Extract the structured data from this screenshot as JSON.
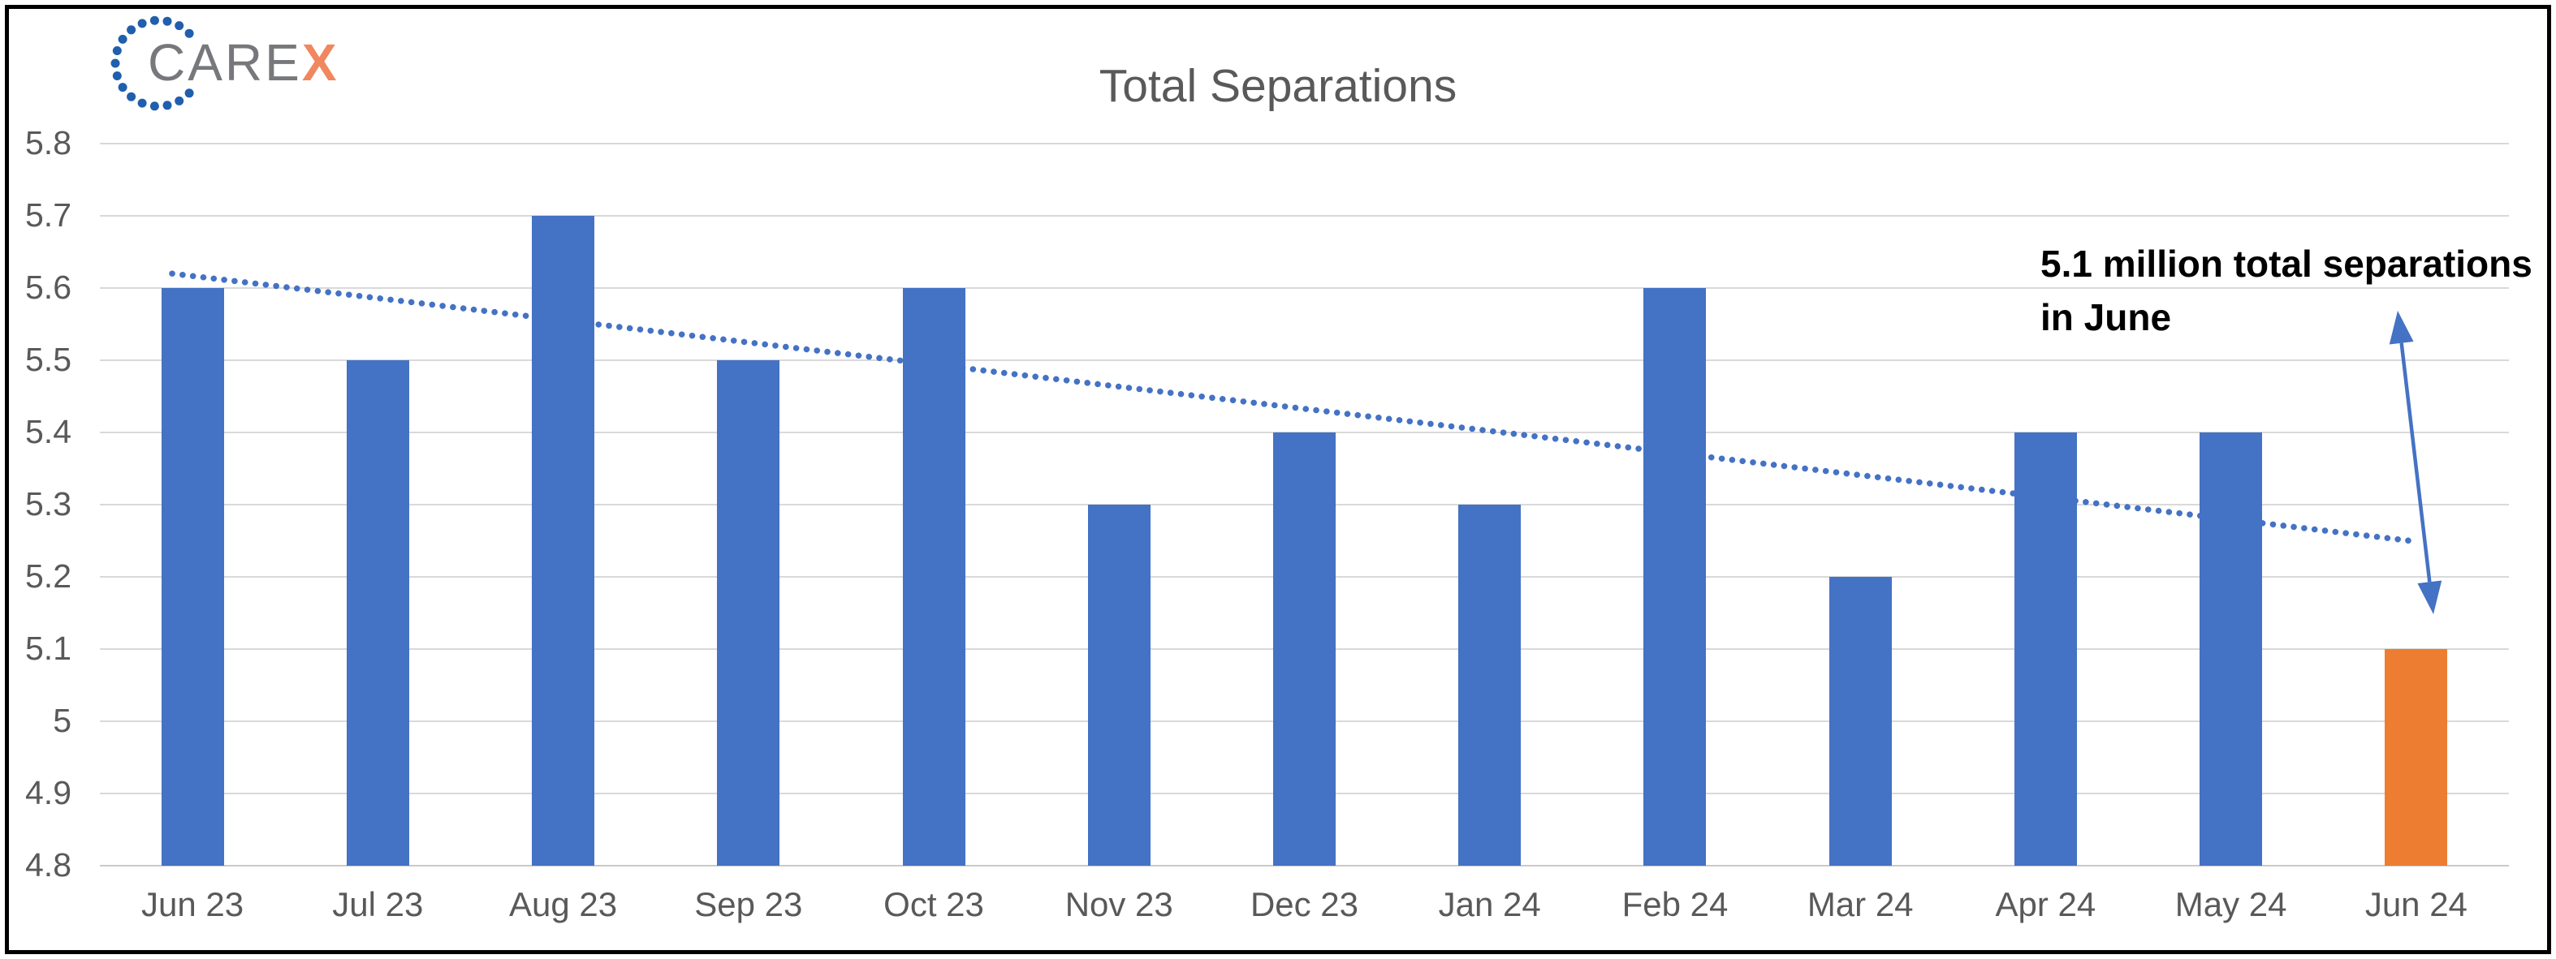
{
  "logo": {
    "care": "CARE",
    "x": "X",
    "colors": {
      "care": "#77787B",
      "x": "#F0875F",
      "dots": "#1F5FAD"
    }
  },
  "chart_data": {
    "type": "bar",
    "title": "Total Separations",
    "categories": [
      "Jun 23",
      "Jul 23",
      "Aug 23",
      "Sep 23",
      "Oct 23",
      "Nov 23",
      "Dec 23",
      "Jan 24",
      "Feb 24",
      "Mar 24",
      "Apr 24",
      "May 24",
      "Jun 24"
    ],
    "values": [
      5.6,
      5.5,
      5.7,
      5.5,
      5.6,
      5.3,
      5.4,
      5.3,
      5.6,
      5.2,
      5.4,
      5.4,
      5.1
    ],
    "highlight_index": 12,
    "ylim": [
      4.8,
      5.8
    ],
    "yticks": [
      "5.8",
      "5.7",
      "5.6",
      "5.5",
      "5.4",
      "5.3",
      "5.2",
      "5.1",
      "5",
      "4.9",
      "4.8"
    ],
    "grid": true,
    "legend": false,
    "trendline": {
      "type": "linear",
      "style": "dotted",
      "start_value": 5.62,
      "end_value": 5.25,
      "color": "#4472C4"
    },
    "annotation": {
      "line1": "5.1 million total separations",
      "line2": "in June",
      "text_color": "#000000",
      "arrow_color": "#4472C4"
    },
    "colors": {
      "bar": "#4472C4",
      "highlight_bar": "#ED7D31",
      "gridline": "#D9D9D9",
      "baseline": "#C9C9C9",
      "axis_text": "#595959",
      "title_text": "#595959"
    }
  }
}
